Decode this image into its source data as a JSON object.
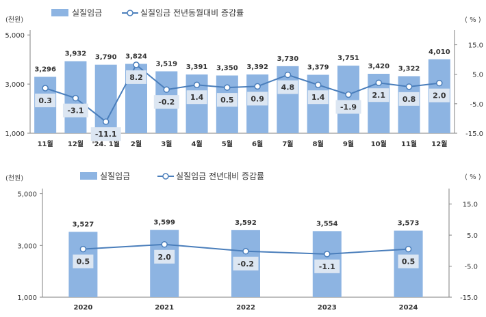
{
  "colors": {
    "bar": "#8db4e2",
    "line": "#4a7ebb",
    "label_box": "#dce6f2",
    "axis": "#7f7f7f",
    "text": "#333333"
  },
  "chart_data": [
    {
      "type": "bar+line",
      "left_unit": "(천원)",
      "right_unit": "( % )",
      "legend": {
        "bar": "실질임금",
        "line": "실질임금 전년동월대비 증감률"
      },
      "legend_placement": "top-left",
      "grid": false,
      "categories": [
        "11월",
        "12월",
        "'24. 1월",
        "2월",
        "3월",
        "4월",
        "5월",
        "6월",
        "7월",
        "8월",
        "9월",
        "10월",
        "11월",
        "12월"
      ],
      "bar_values": [
        3296,
        3932,
        3790,
        3824,
        3519,
        3391,
        3350,
        3392,
        3730,
        3379,
        3751,
        3420,
        3322,
        4010
      ],
      "bar_labels": [
        "3,296",
        "3,932",
        "3,790",
        "3,824",
        "3,519",
        "3,391",
        "3,350",
        "3,392",
        "3,730",
        "3,379",
        "3,751",
        "3,420",
        "3,322",
        "4,010"
      ],
      "line_values": [
        0.3,
        -3.1,
        -11.1,
        8.2,
        -0.2,
        1.4,
        0.5,
        0.9,
        4.8,
        1.4,
        -1.9,
        2.1,
        0.8,
        2.0
      ],
      "line_labels": [
        "0.3",
        "-3.1",
        "-11.1",
        "8.2",
        "-0.2",
        "1.4",
        "0.5",
        "0.9",
        "4.8",
        "1.4",
        "-1.9",
        "2.1",
        "0.8",
        "2.0"
      ],
      "left_axis": {
        "range": [
          1000,
          5200
        ],
        "ticks": [
          1000,
          3000,
          5000
        ],
        "tick_labels": [
          "1,000",
          "3,000",
          "5,000"
        ]
      },
      "right_axis": {
        "range": [
          -15,
          20
        ],
        "ticks": [
          -15,
          -5,
          5,
          15
        ],
        "tick_labels": [
          "-15.0",
          "-5.0",
          "5.0",
          "15.0"
        ]
      }
    },
    {
      "type": "bar+line",
      "left_unit": "(천원)",
      "right_unit": "( % )",
      "legend": {
        "bar": "실질임금",
        "line": "실질임금 전년대비 증감률"
      },
      "legend_placement": "top-left",
      "grid": false,
      "categories": [
        "2020",
        "2021",
        "2022",
        "2023",
        "2024"
      ],
      "bar_values": [
        3527,
        3599,
        3592,
        3554,
        3573
      ],
      "bar_labels": [
        "3,527",
        "3,599",
        "3,592",
        "3,554",
        "3,573"
      ],
      "line_values": [
        0.5,
        2.0,
        -0.2,
        -1.1,
        0.5
      ],
      "line_labels": [
        "0.5",
        "2.0",
        "-0.2",
        "-1.1",
        "0.5"
      ],
      "left_axis": {
        "range": [
          1000,
          5200
        ],
        "ticks": [
          1000,
          3000,
          5000
        ],
        "tick_labels": [
          "1,000",
          "3,000",
          "5,000"
        ]
      },
      "right_axis": {
        "range": [
          -15,
          20
        ],
        "ticks": [
          -15,
          -5,
          5,
          15
        ],
        "tick_labels": [
          "-15.0",
          "-5.0",
          "5.0",
          "15.0"
        ]
      }
    }
  ]
}
